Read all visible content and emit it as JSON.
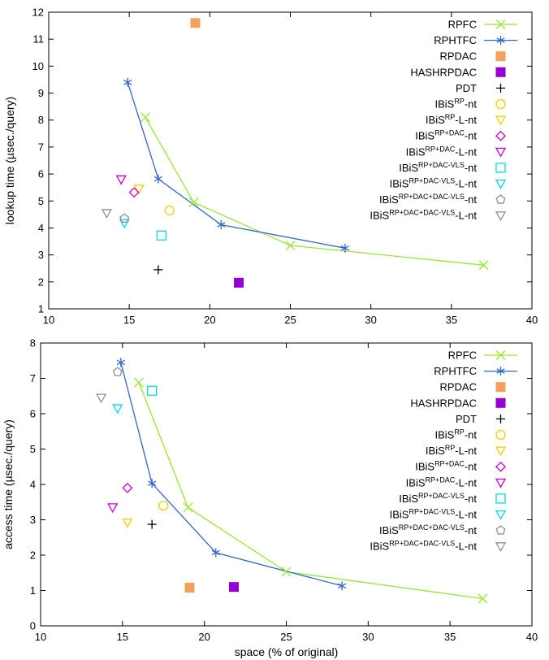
{
  "chart_data": [
    {
      "type": "scatter",
      "xlabel": "",
      "ylabel": "lookup time (µsec./query)",
      "xlim": [
        10,
        40
      ],
      "ylim": [
        1,
        12
      ],
      "xticks": [
        10,
        15,
        20,
        25,
        30,
        35,
        40
      ],
      "yticks": [
        1,
        2,
        3,
        4,
        5,
        6,
        7,
        8,
        9,
        10,
        11,
        12
      ],
      "legend_position": "top-right",
      "series": [
        {
          "name": "RPFC",
          "label": {
            "base": "RPFC",
            "sup": "",
            "suffix": ""
          },
          "marker": "x",
          "color": "#99e633",
          "line": true,
          "x": [
            16.0,
            19.0,
            25.0,
            37.0
          ],
          "y": [
            8.1,
            4.95,
            3.35,
            2.62
          ]
        },
        {
          "name": "RPHTFC",
          "label": {
            "base": "RPHTFC",
            "sup": "",
            "suffix": ""
          },
          "marker": "asterisk",
          "color": "#3366cc",
          "line": true,
          "x": [
            14.9,
            16.8,
            20.7,
            28.4
          ],
          "y": [
            9.4,
            5.82,
            4.12,
            3.25
          ]
        },
        {
          "name": "RPDAC",
          "label": {
            "base": "RPDAC",
            "sup": "",
            "suffix": ""
          },
          "marker": "square-filled",
          "color": "#f5a05a",
          "line": false,
          "x": [
            19.1
          ],
          "y": [
            11.6
          ]
        },
        {
          "name": "HASHRPDAC",
          "label": {
            "base": "HASHRPDAC",
            "sup": "",
            "suffix": ""
          },
          "marker": "square-filled",
          "color": "#9400d3",
          "line": false,
          "x": [
            21.8
          ],
          "y": [
            1.97
          ]
        },
        {
          "name": "PDT",
          "label": {
            "base": "PDT",
            "sup": "",
            "suffix": ""
          },
          "marker": "plus",
          "color": "#000000",
          "line": false,
          "x": [
            16.8
          ],
          "y": [
            2.45
          ]
        },
        {
          "name": "IBiS^RP-nt",
          "label": {
            "base": "IBiS",
            "sup": "RP",
            "suffix": "-nt"
          },
          "marker": "circle",
          "color": "#f0d000",
          "line": false,
          "x": [
            17.5
          ],
          "y": [
            4.65
          ]
        },
        {
          "name": "IBiS^RP-L-nt",
          "label": {
            "base": "IBiS",
            "sup": "RP",
            "suffix": "-L-nt"
          },
          "marker": "triangle-down",
          "color": "#f0d000",
          "line": false,
          "x": [
            15.6
          ],
          "y": [
            5.45
          ]
        },
        {
          "name": "IBiS^RP+DAC-nt",
          "label": {
            "base": "IBiS",
            "sup": "RP+DAC",
            "suffix": "-nt"
          },
          "marker": "diamond",
          "color": "#cc00cc",
          "line": false,
          "x": [
            15.3
          ],
          "y": [
            5.32
          ]
        },
        {
          "name": "IBiS^RP+DAC-L-nt",
          "label": {
            "base": "IBiS",
            "sup": "RP+DAC",
            "suffix": "-L-nt"
          },
          "marker": "triangle-down",
          "color": "#cc00cc",
          "line": false,
          "x": [
            14.5
          ],
          "y": [
            5.8
          ]
        },
        {
          "name": "IBiS^RP+DAC-VLS-nt",
          "label": {
            "base": "IBiS",
            "sup": "RP+DAC-VLS",
            "suffix": "-nt"
          },
          "marker": "square",
          "color": "#00dddd",
          "line": false,
          "x": [
            17.0
          ],
          "y": [
            3.72
          ]
        },
        {
          "name": "IBiS^RP+DAC-VLS-L-nt",
          "label": {
            "base": "IBiS",
            "sup": "RP+DAC-VLS",
            "suffix": "-L-nt"
          },
          "marker": "triangle-down",
          "color": "#00dddd",
          "line": false,
          "x": [
            14.7
          ],
          "y": [
            4.18
          ]
        },
        {
          "name": "IBiS^RP+DAC+DAC-VLS-nt",
          "label": {
            "base": "IBiS",
            "sup": "RP+DAC+DAC-VLS",
            "suffix": "-nt"
          },
          "marker": "pentagon",
          "color": "#909090",
          "line": false,
          "x": [
            14.7
          ],
          "y": [
            4.35
          ]
        },
        {
          "name": "IBiS^RP+DAC+DAC-VLS-L-nt",
          "label": {
            "base": "IBiS",
            "sup": "RP+DAC+DAC-VLS",
            "suffix": "-L-nt"
          },
          "marker": "triangle-down",
          "color": "#909090",
          "line": false,
          "x": [
            13.6
          ],
          "y": [
            4.55
          ]
        }
      ]
    },
    {
      "type": "scatter",
      "xlabel": "space (% of original)",
      "ylabel": "access time (µsec./query)",
      "xlim": [
        10,
        40
      ],
      "ylim": [
        0,
        8
      ],
      "xticks": [
        10,
        15,
        20,
        25,
        30,
        35,
        40
      ],
      "yticks": [
        0,
        1,
        2,
        3,
        4,
        5,
        6,
        7,
        8
      ],
      "legend_position": "top-right",
      "series": [
        {
          "name": "RPFC",
          "label": {
            "base": "RPFC",
            "sup": "",
            "suffix": ""
          },
          "marker": "x",
          "color": "#99e633",
          "line": true,
          "x": [
            16.0,
            19.0,
            25.0,
            37.0
          ],
          "y": [
            6.88,
            3.35,
            1.53,
            0.77
          ]
        },
        {
          "name": "RPHTFC",
          "label": {
            "base": "RPHTFC",
            "sup": "",
            "suffix": ""
          },
          "marker": "asterisk",
          "color": "#3366cc",
          "line": true,
          "x": [
            14.9,
            16.8,
            20.7,
            28.4
          ],
          "y": [
            7.45,
            4.03,
            2.07,
            1.13
          ]
        },
        {
          "name": "RPDAC",
          "label": {
            "base": "RPDAC",
            "sup": "",
            "suffix": ""
          },
          "marker": "square-filled",
          "color": "#f5a05a",
          "line": false,
          "x": [
            19.1
          ],
          "y": [
            1.08
          ]
        },
        {
          "name": "HASHRPDAC",
          "label": {
            "base": "HASHRPDAC",
            "sup": "",
            "suffix": ""
          },
          "marker": "square-filled",
          "color": "#9400d3",
          "line": false,
          "x": [
            21.8
          ],
          "y": [
            1.1
          ]
        },
        {
          "name": "PDT",
          "label": {
            "base": "PDT",
            "sup": "",
            "suffix": ""
          },
          "marker": "plus",
          "color": "#000000",
          "line": false,
          "x": [
            16.8
          ],
          "y": [
            2.87
          ]
        },
        {
          "name": "IBiS^RP-nt",
          "label": {
            "base": "IBiS",
            "sup": "RP",
            "suffix": "-nt"
          },
          "marker": "circle",
          "color": "#f0d000",
          "line": false,
          "x": [
            17.5
          ],
          "y": [
            3.4
          ]
        },
        {
          "name": "IBiS^RP-L-nt",
          "label": {
            "base": "IBiS",
            "sup": "RP",
            "suffix": "-L-nt"
          },
          "marker": "triangle-down",
          "color": "#f0d000",
          "line": false,
          "x": [
            15.3
          ],
          "y": [
            2.92
          ]
        },
        {
          "name": "IBiS^RP+DAC-nt",
          "label": {
            "base": "IBiS",
            "sup": "RP+DAC",
            "suffix": "-nt"
          },
          "marker": "diamond",
          "color": "#cc00cc",
          "line": false,
          "x": [
            15.3
          ],
          "y": [
            3.9
          ]
        },
        {
          "name": "IBiS^RP+DAC-L-nt",
          "label": {
            "base": "IBiS",
            "sup": "RP+DAC",
            "suffix": "-L-nt"
          },
          "marker": "triangle-down",
          "color": "#cc00cc",
          "line": false,
          "x": [
            14.4
          ],
          "y": [
            3.35
          ]
        },
        {
          "name": "IBiS^RP+DAC-VLS-nt",
          "label": {
            "base": "IBiS",
            "sup": "RP+DAC-VLS",
            "suffix": "-nt"
          },
          "marker": "square",
          "color": "#00dddd",
          "line": false,
          "x": [
            16.8
          ],
          "y": [
            6.65
          ]
        },
        {
          "name": "IBiS^RP+DAC-VLS-L-nt",
          "label": {
            "base": "IBiS",
            "sup": "RP+DAC-VLS",
            "suffix": "-L-nt"
          },
          "marker": "triangle-down",
          "color": "#00dddd",
          "line": false,
          "x": [
            14.7
          ],
          "y": [
            6.15
          ]
        },
        {
          "name": "IBiS^RP+DAC+DAC-VLS-nt",
          "label": {
            "base": "IBiS",
            "sup": "RP+DAC+DAC-VLS",
            "suffix": "-nt"
          },
          "marker": "pentagon",
          "color": "#909090",
          "line": false,
          "x": [
            14.7
          ],
          "y": [
            7.18
          ]
        },
        {
          "name": "IBiS^RP+DAC+DAC-VLS-L-nt",
          "label": {
            "base": "IBiS",
            "sup": "RP+DAC+DAC-VLS",
            "suffix": "-L-nt"
          },
          "marker": "triangle-down",
          "color": "#909090",
          "line": false,
          "x": [
            13.7
          ],
          "y": [
            6.45
          ]
        }
      ]
    }
  ]
}
